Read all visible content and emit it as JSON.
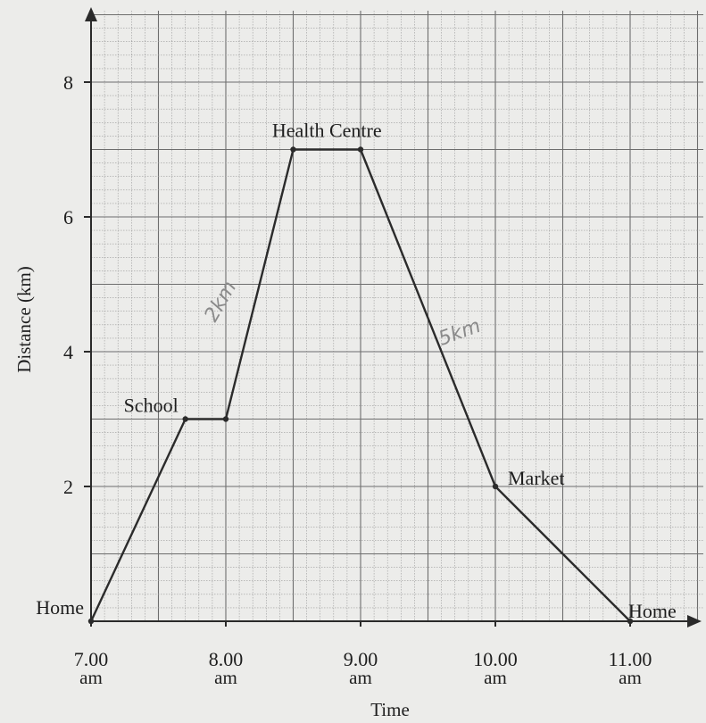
{
  "chart_data": {
    "type": "line",
    "xlabel": "Time",
    "ylabel": "Distance (km)",
    "x_ticks": [
      {
        "value": 7,
        "time": "7.00",
        "period": "am"
      },
      {
        "value": 8,
        "time": "8.00",
        "period": "am"
      },
      {
        "value": 9,
        "time": "9.00",
        "period": "am"
      },
      {
        "value": 10,
        "time": "10.00",
        "period": "am"
      },
      {
        "value": 11,
        "time": "11.00",
        "period": "am"
      }
    ],
    "y_ticks": [
      2,
      4,
      6,
      8
    ],
    "xlim": [
      7,
      11.4
    ],
    "ylim": [
      0,
      9.1
    ],
    "grid": true,
    "series": [
      {
        "x": [
          7.0,
          7.7,
          8.0,
          8.5,
          9.0,
          10.0,
          11.0
        ],
        "y": [
          0,
          3,
          3,
          7,
          7,
          2,
          0
        ]
      }
    ],
    "annotations": [
      {
        "text": "Home",
        "x": 7.0,
        "y": 0,
        "placement": "above-left"
      },
      {
        "text": "School",
        "x": 7.7,
        "y": 3,
        "placement": "above-left"
      },
      {
        "text": "Health Centre",
        "x": 8.75,
        "y": 7,
        "placement": "above"
      },
      {
        "text": "Market",
        "x": 10.0,
        "y": 2,
        "placement": "right"
      },
      {
        "text": "Home",
        "x": 11.0,
        "y": 0,
        "placement": "above-right"
      }
    ],
    "handwritten_notes": [
      {
        "text": "2km",
        "x": 8.0,
        "y": 4.7
      },
      {
        "text": "5km",
        "x": 9.75,
        "y": 4.2
      }
    ]
  }
}
